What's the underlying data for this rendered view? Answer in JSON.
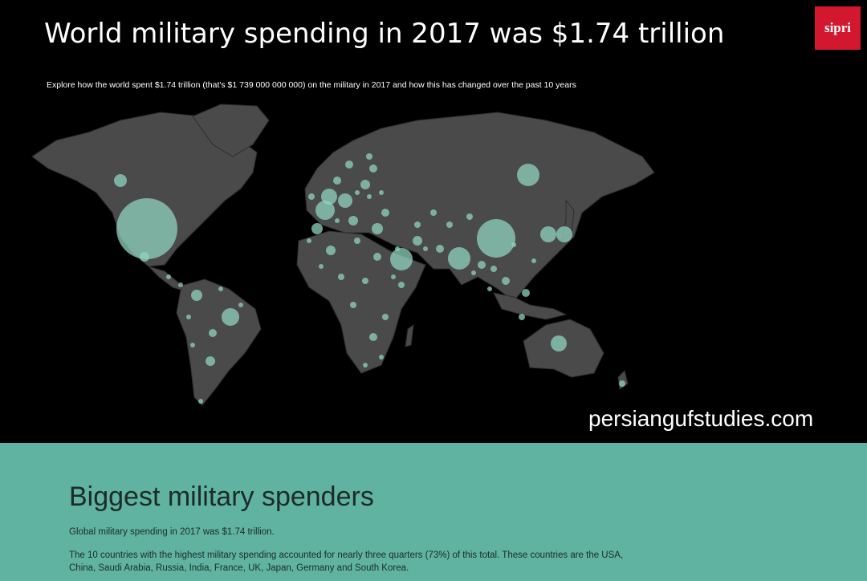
{
  "header": {
    "title": "World military spending in 2017 was $1.74 trillion",
    "subtitle": "Explore how the world spent $1.74 trillion (that's $1 739 000 000 000) on the military in 2017 and how this has changed over the past 10 years",
    "logo": "sipri"
  },
  "watermark": "persiangufstudies.com",
  "section": {
    "title": "Biggest military spenders",
    "paragraphs": [
      "Global military spending in 2017 was $1.74 trillion.",
      "The 10 countries with the highest military spending accounted for nearly three quarters (73%) of this total. These countries are the USA, China, Saudi Arabia, Russia, India, France, UK, Japan, Germany and South Korea."
    ]
  }
}
